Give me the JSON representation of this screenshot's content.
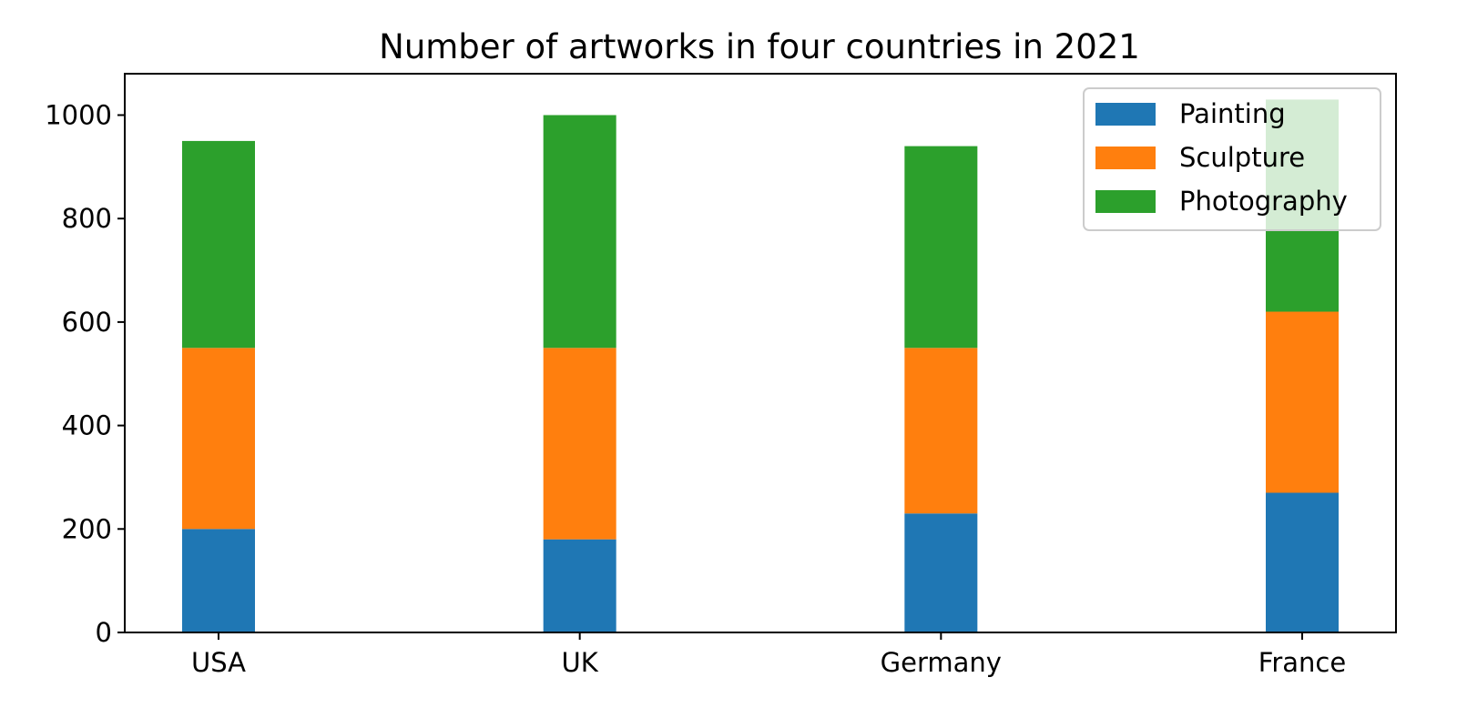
{
  "chart_data": {
    "type": "bar",
    "stacked": true,
    "title": "Number of artworks in four countries in 2021",
    "xlabel": "",
    "ylabel": "",
    "categories": [
      "USA",
      "UK",
      "Germany",
      "France"
    ],
    "series": [
      {
        "name": "Painting",
        "color": "#1f77b4",
        "values": [
          200,
          180,
          230,
          270
        ]
      },
      {
        "name": "Sculpture",
        "color": "#ff7f0e",
        "values": [
          350,
          370,
          320,
          350
        ]
      },
      {
        "name": "Photography",
        "color": "#2ca02c",
        "values": [
          400,
          450,
          390,
          410
        ]
      }
    ],
    "ylim": [
      0,
      1080
    ],
    "yticks": [
      0,
      200,
      400,
      600,
      800,
      1000
    ],
    "grid": false,
    "legend_position": "top-right"
  }
}
